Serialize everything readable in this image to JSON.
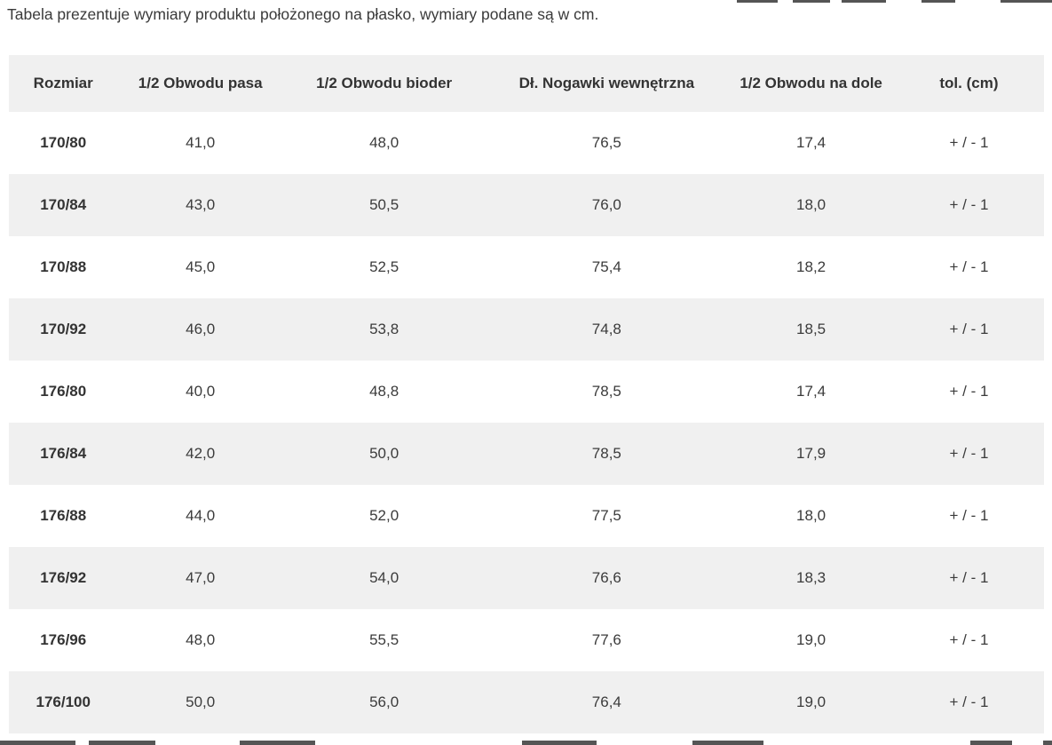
{
  "intro": {
    "text": "Tabela prezentuje wymiary produktu położonego na płasko, wymiary podane są w cm."
  },
  "table": {
    "columns": [
      "Rozmiar",
      "1/2 Obwodu pasa",
      "1/2 Obwodu bioder",
      "Dł. Nogawki wewnętrzna",
      "1/2 Obwodu na dole",
      "tol. (cm)"
    ],
    "rows": [
      [
        "170/80",
        "41,0",
        "48,0",
        "76,5",
        "17,4",
        "+ / - 1"
      ],
      [
        "170/84",
        "43,0",
        "50,5",
        "76,0",
        "18,0",
        "+ / - 1"
      ],
      [
        "170/88",
        "45,0",
        "52,5",
        "75,4",
        "18,2",
        "+ / - 1"
      ],
      [
        "170/92",
        "46,0",
        "53,8",
        "74,8",
        "18,5",
        "+ / - 1"
      ],
      [
        "176/80",
        "40,0",
        "48,8",
        "78,5",
        "17,4",
        "+ / - 1"
      ],
      [
        "176/84",
        "42,0",
        "50,0",
        "78,5",
        "17,9",
        "+ / - 1"
      ],
      [
        "176/88",
        "44,0",
        "52,0",
        "77,5",
        "18,0",
        "+ / - 1"
      ],
      [
        "176/92",
        "47,0",
        "54,0",
        "76,6",
        "18,3",
        "+ / - 1"
      ],
      [
        "176/96",
        "48,0",
        "55,5",
        "77,6",
        "19,0",
        "+ / - 1"
      ],
      [
        "176/100",
        "50,0",
        "56,0",
        "76,4",
        "19,0",
        "+ / - 1"
      ]
    ]
  },
  "colors": {
    "text": "#3b3b3b",
    "header_text": "#333333",
    "row_alt": "#f0f0f0",
    "background": "#ffffff"
  }
}
